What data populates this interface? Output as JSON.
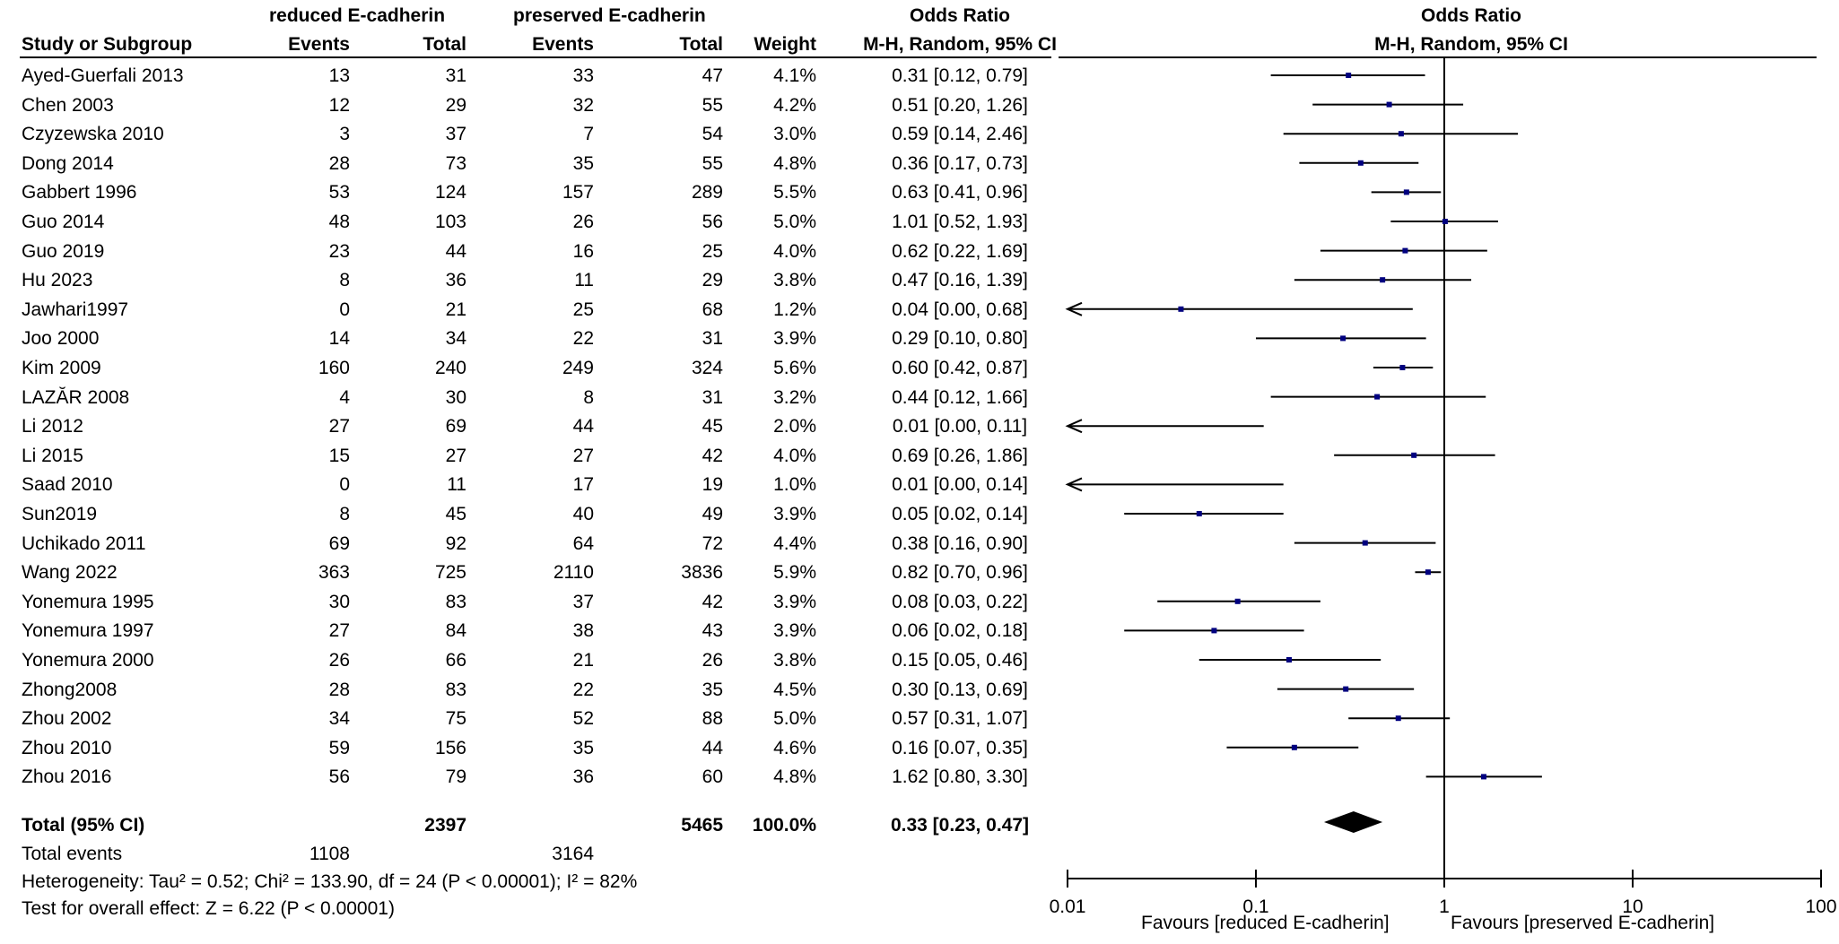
{
  "header": {
    "group1": "reduced E-cadherin",
    "group2": "preserved E-cadherin",
    "or_title_left": "Odds Ratio",
    "or_title_right": "Odds Ratio",
    "col_study": "Study or Subgroup",
    "col_events1": "Events",
    "col_total1": "Total",
    "col_events2": "Events",
    "col_total2": "Total",
    "col_weight": "Weight",
    "col_method_left": "M-H, Random, 95% CI",
    "col_method_right": "M-H, Random, 95% CI"
  },
  "studies": [
    {
      "name": "Ayed-Guerfali 2013",
      "e1": "13",
      "t1": "31",
      "e2": "33",
      "t2": "47",
      "weight": "4.1%",
      "ci": "0.31 [0.12, 0.79]"
    },
    {
      "name": "Chen 2003",
      "e1": "12",
      "t1": "29",
      "e2": "32",
      "t2": "55",
      "weight": "4.2%",
      "ci": "0.51 [0.20, 1.26]"
    },
    {
      "name": "Czyzewska 2010",
      "e1": "3",
      "t1": "37",
      "e2": "7",
      "t2": "54",
      "weight": "3.0%",
      "ci": "0.59 [0.14, 2.46]"
    },
    {
      "name": "Dong 2014",
      "e1": "28",
      "t1": "73",
      "e2": "35",
      "t2": "55",
      "weight": "4.8%",
      "ci": "0.36 [0.17, 0.73]"
    },
    {
      "name": "Gabbert 1996",
      "e1": "53",
      "t1": "124",
      "e2": "157",
      "t2": "289",
      "weight": "5.5%",
      "ci": "0.63 [0.41, 0.96]"
    },
    {
      "name": "Guo 2014",
      "e1": "48",
      "t1": "103",
      "e2": "26",
      "t2": "56",
      "weight": "5.0%",
      "ci": "1.01 [0.52, 1.93]"
    },
    {
      "name": "Guo 2019",
      "e1": "23",
      "t1": "44",
      "e2": "16",
      "t2": "25",
      "weight": "4.0%",
      "ci": "0.62 [0.22, 1.69]"
    },
    {
      "name": "Hu 2023",
      "e1": "8",
      "t1": "36",
      "e2": "11",
      "t2": "29",
      "weight": "3.8%",
      "ci": "0.47 [0.16, 1.39]"
    },
    {
      "name": "Jawhari1997",
      "e1": "0",
      "t1": "21",
      "e2": "25",
      "t2": "68",
      "weight": "1.2%",
      "ci": "0.04 [0.00, 0.68]"
    },
    {
      "name": "Joo 2000",
      "e1": "14",
      "t1": "34",
      "e2": "22",
      "t2": "31",
      "weight": "3.9%",
      "ci": "0.29 [0.10, 0.80]"
    },
    {
      "name": "Kim 2009",
      "e1": "160",
      "t1": "240",
      "e2": "249",
      "t2": "324",
      "weight": "5.6%",
      "ci": "0.60 [0.42, 0.87]"
    },
    {
      "name": "LAZĂR 2008",
      "e1": "4",
      "t1": "30",
      "e2": "8",
      "t2": "31",
      "weight": "3.2%",
      "ci": "0.44 [0.12, 1.66]"
    },
    {
      "name": "Li 2012",
      "e1": "27",
      "t1": "69",
      "e2": "44",
      "t2": "45",
      "weight": "2.0%",
      "ci": "0.01 [0.00, 0.11]"
    },
    {
      "name": "Li 2015",
      "e1": "15",
      "t1": "27",
      "e2": "27",
      "t2": "42",
      "weight": "4.0%",
      "ci": "0.69 [0.26, 1.86]"
    },
    {
      "name": "Saad 2010",
      "e1": "0",
      "t1": "11",
      "e2": "17",
      "t2": "19",
      "weight": "1.0%",
      "ci": "0.01 [0.00, 0.14]"
    },
    {
      "name": "Sun2019",
      "e1": "8",
      "t1": "45",
      "e2": "40",
      "t2": "49",
      "weight": "3.9%",
      "ci": "0.05 [0.02, 0.14]"
    },
    {
      "name": "Uchikado  2011",
      "e1": "69",
      "t1": "92",
      "e2": "64",
      "t2": "72",
      "weight": "4.4%",
      "ci": "0.38 [0.16, 0.90]"
    },
    {
      "name": "Wang 2022",
      "e1": "363",
      "t1": "725",
      "e2": "2110",
      "t2": "3836",
      "weight": "5.9%",
      "ci": "0.82 [0.70, 0.96]"
    },
    {
      "name": "Yonemura 1995",
      "e1": "30",
      "t1": "83",
      "e2": "37",
      "t2": "42",
      "weight": "3.9%",
      "ci": "0.08 [0.03, 0.22]"
    },
    {
      "name": "Yonemura 1997",
      "e1": "27",
      "t1": "84",
      "e2": "38",
      "t2": "43",
      "weight": "3.9%",
      "ci": "0.06 [0.02, 0.18]"
    },
    {
      "name": "Yonemura 2000",
      "e1": "26",
      "t1": "66",
      "e2": "21",
      "t2": "26",
      "weight": "3.8%",
      "ci": "0.15 [0.05, 0.46]"
    },
    {
      "name": "Zhong2008",
      "e1": "28",
      "t1": "83",
      "e2": "22",
      "t2": "35",
      "weight": "4.5%",
      "ci": "0.30 [0.13, 0.69]"
    },
    {
      "name": "Zhou 2002",
      "e1": "34",
      "t1": "75",
      "e2": "52",
      "t2": "88",
      "weight": "5.0%",
      "ci": "0.57 [0.31, 1.07]"
    },
    {
      "name": "Zhou 2010",
      "e1": "59",
      "t1": "156",
      "e2": "35",
      "t2": "44",
      "weight": "4.6%",
      "ci": "0.16 [0.07, 0.35]"
    },
    {
      "name": "Zhou 2016",
      "e1": "56",
      "t1": "79",
      "e2": "36",
      "t2": "60",
      "weight": "4.8%",
      "ci": "1.62 [0.80, 3.30]"
    }
  ],
  "total": {
    "label": "Total (95% CI)",
    "t1": "2397",
    "t2": "5465",
    "weight": "100.0%",
    "ci": "0.33 [0.23, 0.47]",
    "events_label": "Total events",
    "e1": "1108",
    "e2": "3164"
  },
  "footer": {
    "heterogeneity": "Heterogeneity: Tau² = 0.52; Chi² = 133.90, df = 24 (P < 0.00001); I² = 82%",
    "overall": "Test for overall effect: Z = 6.22 (P < 0.00001)"
  },
  "axis": {
    "favours_left": "Favours [reduced E-cadherin]",
    "favours_right": "Favours [preserved E-cadherin]"
  },
  "chart_data": {
    "type": "forest",
    "scale": "log",
    "xlim": [
      0.01,
      100
    ],
    "ticks": [
      0.01,
      0.1,
      1,
      10,
      100
    ],
    "tick_labels": [
      "0.01",
      "0.1",
      "1",
      "10",
      "100"
    ],
    "null_line": 1,
    "point_color": "#00007f",
    "summary": {
      "or": 0.33,
      "lower": 0.23,
      "upper": 0.47
    },
    "points": [
      {
        "or": 0.31,
        "lower": 0.12,
        "upper": 0.79
      },
      {
        "or": 0.51,
        "lower": 0.2,
        "upper": 1.26
      },
      {
        "or": 0.59,
        "lower": 0.14,
        "upper": 2.46
      },
      {
        "or": 0.36,
        "lower": 0.17,
        "upper": 0.73
      },
      {
        "or": 0.63,
        "lower": 0.41,
        "upper": 0.96
      },
      {
        "or": 1.01,
        "lower": 0.52,
        "upper": 1.93
      },
      {
        "or": 0.62,
        "lower": 0.22,
        "upper": 1.69
      },
      {
        "or": 0.47,
        "lower": 0.16,
        "upper": 1.39
      },
      {
        "or": 0.04,
        "lower": 0.0,
        "upper": 0.68
      },
      {
        "or": 0.29,
        "lower": 0.1,
        "upper": 0.8
      },
      {
        "or": 0.6,
        "lower": 0.42,
        "upper": 0.87
      },
      {
        "or": 0.44,
        "lower": 0.12,
        "upper": 1.66
      },
      {
        "or": 0.01,
        "lower": 0.0,
        "upper": 0.11
      },
      {
        "or": 0.69,
        "lower": 0.26,
        "upper": 1.86
      },
      {
        "or": 0.01,
        "lower": 0.0,
        "upper": 0.14
      },
      {
        "or": 0.05,
        "lower": 0.02,
        "upper": 0.14
      },
      {
        "or": 0.38,
        "lower": 0.16,
        "upper": 0.9
      },
      {
        "or": 0.82,
        "lower": 0.7,
        "upper": 0.96
      },
      {
        "or": 0.08,
        "lower": 0.03,
        "upper": 0.22
      },
      {
        "or": 0.06,
        "lower": 0.02,
        "upper": 0.18
      },
      {
        "or": 0.15,
        "lower": 0.05,
        "upper": 0.46
      },
      {
        "or": 0.3,
        "lower": 0.13,
        "upper": 0.69
      },
      {
        "or": 0.57,
        "lower": 0.31,
        "upper": 1.07
      },
      {
        "or": 0.16,
        "lower": 0.07,
        "upper": 0.35
      },
      {
        "or": 1.62,
        "lower": 0.8,
        "upper": 3.3
      }
    ]
  }
}
